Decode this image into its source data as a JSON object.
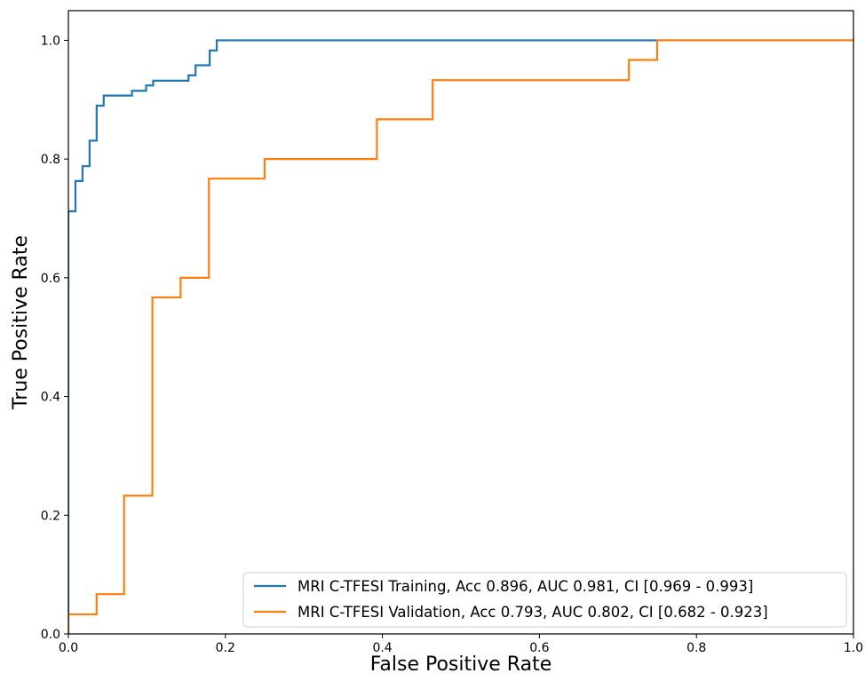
{
  "chart_data": {
    "type": "line",
    "title": "",
    "xlabel": "False Positive Rate",
    "ylabel": "True Positive Rate",
    "xlim": [
      0.0,
      1.0
    ],
    "ylim": [
      0.0,
      1.05
    ],
    "xticks": [
      "0.0",
      "0.2",
      "0.4",
      "0.6",
      "0.8",
      "1.0"
    ],
    "yticks": [
      "0.0",
      "0.2",
      "0.4",
      "0.6",
      "0.8",
      "1.0"
    ],
    "grid": false,
    "legend_position": "bottom-right",
    "series": [
      {
        "name": "MRI C-TFESI Training, Acc 0.896, AUC 0.981, CI [0.969 - 0.993]",
        "color": "#1f77b4",
        "x": [
          0.0,
          0.0,
          0.009,
          0.009,
          0.018,
          0.018,
          0.027,
          0.027,
          0.036,
          0.036,
          0.045,
          0.045,
          0.081,
          0.081,
          0.099,
          0.099,
          0.108,
          0.108,
          0.153,
          0.153,
          0.162,
          0.162,
          0.18,
          0.18,
          0.189,
          0.189,
          0.75,
          1.0
        ],
        "y": [
          0.0,
          0.712,
          0.712,
          0.763,
          0.763,
          0.788,
          0.788,
          0.831,
          0.831,
          0.89,
          0.89,
          0.907,
          0.907,
          0.915,
          0.915,
          0.924,
          0.924,
          0.932,
          0.932,
          0.941,
          0.941,
          0.958,
          0.958,
          0.983,
          0.983,
          1.0,
          1.0,
          1.0
        ]
      },
      {
        "name": "MRI C-TFESI Validation, Acc 0.793, AUC 0.802, CI [0.682 - 0.923]",
        "color": "#ff7f0e",
        "x": [
          0.0,
          0.0,
          0.036,
          0.036,
          0.071,
          0.071,
          0.107,
          0.107,
          0.143,
          0.143,
          0.179,
          0.179,
          0.25,
          0.25,
          0.393,
          0.393,
          0.464,
          0.464,
          0.714,
          0.714,
          0.75,
          0.75,
          1.0
        ],
        "y": [
          0.0,
          0.033,
          0.033,
          0.067,
          0.067,
          0.233,
          0.233,
          0.567,
          0.567,
          0.6,
          0.6,
          0.767,
          0.767,
          0.8,
          0.8,
          0.867,
          0.867,
          0.933,
          0.933,
          0.967,
          0.967,
          1.0,
          1.0
        ]
      }
    ]
  }
}
